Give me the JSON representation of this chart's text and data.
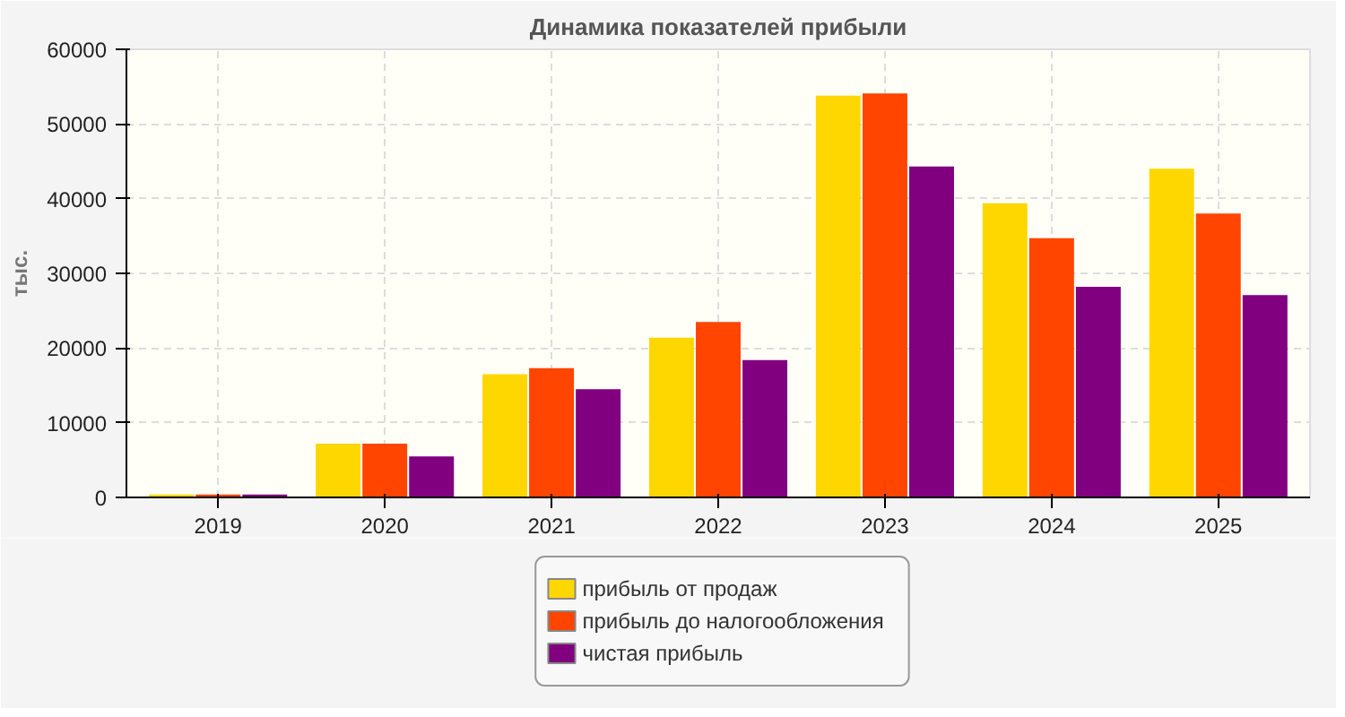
{
  "chart_data": {
    "type": "bar",
    "title": "Динамика показателей прибыли",
    "ylabel": "тыс.",
    "categories": [
      "2019",
      "2020",
      "2021",
      "2022",
      "2023",
      "2024",
      "2025"
    ],
    "series": [
      {
        "name": "прибыль от продаж",
        "color": "#ffd700",
        "values": [
          400,
          7200,
          16500,
          21400,
          53800,
          39400,
          44000
        ]
      },
      {
        "name": "прибыль до налогообложения",
        "color": "#ff4500",
        "values": [
          400,
          7200,
          17300,
          23500,
          54100,
          34700,
          38000
        ]
      },
      {
        "name": "чистая прибыль",
        "color": "#800080",
        "values": [
          400,
          5500,
          14500,
          18400,
          44300,
          28200,
          27100
        ]
      }
    ],
    "ylim": [
      0,
      60000
    ],
    "yticks": [
      0,
      10000,
      20000,
      30000,
      40000,
      50000,
      60000
    ],
    "grid": true,
    "legend": "bottom"
  }
}
